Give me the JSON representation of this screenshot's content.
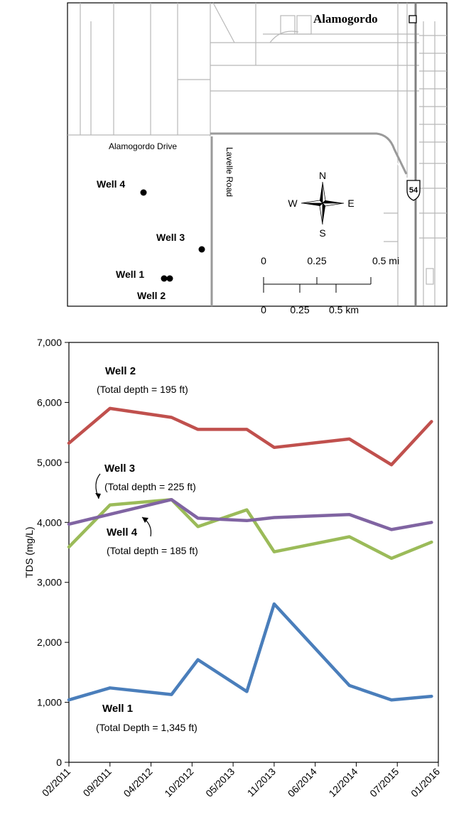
{
  "map": {
    "town_label": "Alamogordo",
    "road_labels": [
      "Alamogordo Drive",
      "Lavelle Road"
    ],
    "highway_shield": "54",
    "compass": {
      "n": "N",
      "s": "S",
      "e": "E",
      "w": "W"
    },
    "scale_mi": [
      "0",
      "0.25",
      "0.5 mi"
    ],
    "scale_km": [
      "0",
      "0.25",
      "0.5 km"
    ],
    "wells": [
      {
        "label": "Well 4"
      },
      {
        "label": "Well 3"
      },
      {
        "label": "Well 1"
      },
      {
        "label": "Well 2"
      }
    ]
  },
  "chart_data": {
    "type": "line",
    "ylabel": "TDS (mg/L)",
    "xlabel": "",
    "ylim": [
      0,
      7000
    ],
    "yticks": [
      0,
      1000,
      2000,
      3000,
      4000,
      5000,
      6000,
      7000
    ],
    "ytick_labels": [
      "0",
      "1,000",
      "2,000",
      "3,000",
      "4,000",
      "5,000",
      "6,000",
      "7,000"
    ],
    "x_categories": [
      "02/2011",
      "09/2011",
      "04/2012",
      "10/2012",
      "05/2013",
      "11/2013",
      "06/2014",
      "12/2014",
      "07/2015",
      "01/2016"
    ],
    "grid": false,
    "series": [
      {
        "name": "Well 1",
        "color": "#4a7ebb",
        "annotation": "(Total Depth = 1,345 ft)",
        "points": [
          {
            "x": "02/2011",
            "y": 1040
          },
          {
            "x": "09/2011",
            "y": 1240
          },
          {
            "x": "07/2012",
            "y": 1130
          },
          {
            "x": "11/2012",
            "y": 1710
          },
          {
            "x": "07/2013",
            "y": 1180
          },
          {
            "x": "11/2013",
            "y": 2640
          },
          {
            "x": "11/2014",
            "y": 1280
          },
          {
            "x": "06/2015",
            "y": 1040
          },
          {
            "x": "12/2015",
            "y": 1100
          }
        ]
      },
      {
        "name": "Well 2",
        "color": "#c0504d",
        "annotation": "(Total depth = 195 ft)",
        "points": [
          {
            "x": "02/2011",
            "y": 5320
          },
          {
            "x": "09/2011",
            "y": 5900
          },
          {
            "x": "07/2012",
            "y": 5750
          },
          {
            "x": "11/2012",
            "y": 5550
          },
          {
            "x": "07/2013",
            "y": 5550
          },
          {
            "x": "11/2013",
            "y": 5250
          },
          {
            "x": "11/2014",
            "y": 5390
          },
          {
            "x": "06/2015",
            "y": 4960
          },
          {
            "x": "12/2015",
            "y": 5680
          }
        ]
      },
      {
        "name": "Well 3",
        "color": "#9bbb59",
        "annotation": "(Total depth = 225 ft)",
        "points": [
          {
            "x": "02/2011",
            "y": 3590
          },
          {
            "x": "09/2011",
            "y": 4290
          },
          {
            "x": "07/2012",
            "y": 4380
          },
          {
            "x": "11/2012",
            "y": 3930
          },
          {
            "x": "07/2013",
            "y": 4210
          },
          {
            "x": "11/2013",
            "y": 3510
          },
          {
            "x": "11/2014",
            "y": 3760
          },
          {
            "x": "06/2015",
            "y": 3400
          },
          {
            "x": "12/2015",
            "y": 3670
          }
        ]
      },
      {
        "name": "Well 4",
        "color": "#8064a2",
        "annotation": "(Total depth = 185 ft)",
        "points": [
          {
            "x": "02/2011",
            "y": 3970
          },
          {
            "x": "07/2012",
            "y": 4380
          },
          {
            "x": "11/2012",
            "y": 4070
          },
          {
            "x": "07/2013",
            "y": 4030
          },
          {
            "x": "11/2013",
            "y": 4080
          },
          {
            "x": "11/2014",
            "y": 4130
          },
          {
            "x": "06/2015",
            "y": 3880
          },
          {
            "x": "12/2015",
            "y": 4000
          }
        ]
      }
    ]
  }
}
